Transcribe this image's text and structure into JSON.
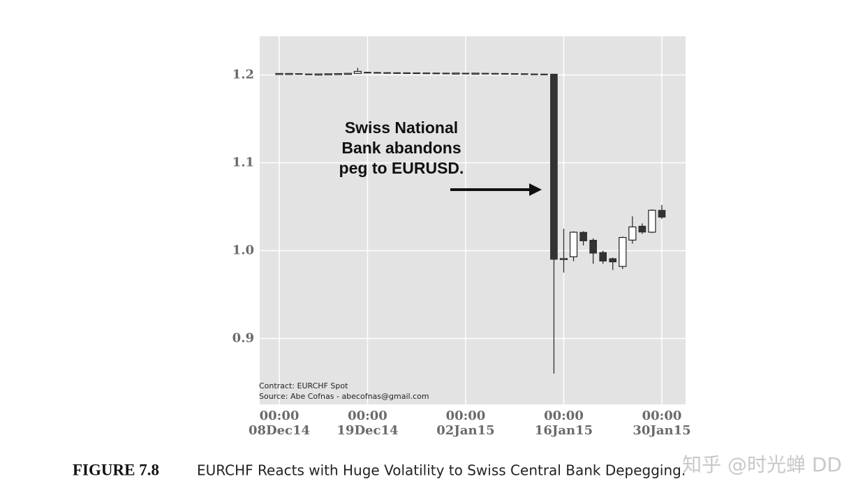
{
  "chart_data": {
    "type": "candlestick",
    "x": [
      "2014-12-08",
      "2014-12-09",
      "2014-12-10",
      "2014-12-11",
      "2014-12-12",
      "2014-12-15",
      "2014-12-16",
      "2014-12-17",
      "2014-12-18",
      "2014-12-19",
      "2014-12-22",
      "2014-12-23",
      "2014-12-24",
      "2014-12-25",
      "2014-12-26",
      "2014-12-29",
      "2014-12-30",
      "2014-12-31",
      "2015-01-01",
      "2015-01-02",
      "2015-01-05",
      "2015-01-06",
      "2015-01-07",
      "2015-01-08",
      "2015-01-09",
      "2015-01-12",
      "2015-01-13",
      "2015-01-14",
      "2015-01-15",
      "2015-01-16",
      "2015-01-19",
      "2015-01-20",
      "2015-01-21",
      "2015-01-22",
      "2015-01-23",
      "2015-01-26",
      "2015-01-27",
      "2015-01-28",
      "2015-01-29",
      "2015-01-30"
    ],
    "open": [
      1.2015,
      1.2016,
      1.2016,
      1.2012,
      1.201,
      1.2011,
      1.2013,
      1.2015,
      1.2018,
      1.2032,
      1.203,
      1.2028,
      1.2027,
      1.2026,
      1.2025,
      1.2024,
      1.2023,
      1.2022,
      1.2021,
      1.2021,
      1.202,
      1.202,
      1.2019,
      1.2018,
      1.2017,
      1.2015,
      1.2012,
      1.2011,
      1.201,
      0.99,
      0.993,
      1.021,
      1.012,
      0.998,
      0.991,
      0.982,
      1.012,
      1.028,
      1.021,
      1.046
    ],
    "high": [
      1.2018,
      1.2018,
      1.2018,
      1.2014,
      1.2013,
      1.2015,
      1.2017,
      1.202,
      1.208,
      1.2034,
      1.2032,
      1.203,
      1.2029,
      1.2028,
      1.2027,
      1.2026,
      1.2025,
      1.2024,
      1.2023,
      1.2023,
      1.2022,
      1.2022,
      1.2021,
      1.202,
      1.2019,
      1.2017,
      1.2014,
      1.2013,
      1.2012,
      1.025,
      1.022,
      1.022,
      1.014,
      1.0,
      0.992,
      1.016,
      1.039,
      1.031,
      1.047,
      1.052
    ],
    "low": [
      1.2013,
      1.2014,
      1.2011,
      1.2009,
      1.2008,
      1.2009,
      1.2011,
      1.2013,
      1.2014,
      1.2028,
      1.2026,
      1.2025,
      1.2024,
      1.2023,
      1.2022,
      1.2021,
      1.202,
      1.2019,
      1.2019,
      1.2018,
      1.2018,
      1.2017,
      1.2016,
      1.2015,
      1.2013,
      1.201,
      1.2009,
      1.2008,
      0.86,
      0.975,
      0.988,
      1.006,
      0.985,
      0.985,
      0.978,
      0.979,
      1.008,
      1.019,
      1.02,
      1.036
    ],
    "close": [
      1.2016,
      1.2016,
      1.2013,
      1.2011,
      1.2011,
      1.2013,
      1.2015,
      1.2018,
      1.204,
      1.203,
      1.2028,
      1.2027,
      1.2026,
      1.2025,
      1.2024,
      1.2023,
      1.2022,
      1.2021,
      1.2021,
      1.202,
      1.202,
      1.2019,
      1.2018,
      1.2017,
      1.2015,
      1.2012,
      1.2011,
      1.201,
      0.99,
      0.991,
      1.021,
      1.011,
      0.997,
      0.988,
      0.987,
      1.015,
      1.027,
      1.021,
      1.046,
      1.038
    ],
    "up_color": "#ffffff",
    "down_color": "#333333",
    "ylim": [
      0.825,
      1.244
    ],
    "yticks": [
      0.9,
      {
        "value": 1,
        "label": "1.0"
      },
      1.1,
      1.2
    ],
    "xticks": [
      {
        "value": "2014-12-08",
        "label": [
          "00:00",
          "08Dec14"
        ]
      },
      {
        "value": "2014-12-19",
        "label": [
          "00:00",
          "19Dec14"
        ]
      },
      {
        "value": "2015-01-02",
        "label": [
          "00:00",
          "02Jan15"
        ]
      },
      {
        "value": "2015-01-16",
        "label": [
          "00:00",
          "16Jan15"
        ]
      },
      {
        "value": "2015-01-30",
        "label": [
          "00:00",
          "30Jan15"
        ]
      }
    ],
    "grid": true,
    "annotation": [
      "Swiss National",
      "Bank abandons",
      "peg to EURUSD."
    ],
    "notes": [
      "Contract: EURCHF Spot",
      "Source: Abe Cofnas - abecofnas@gmail.com"
    ]
  },
  "caption": {
    "label": "FIGURE 7.8",
    "text": "EURCHF Reacts with Huge Volatility to Swiss Central Bank Depegging."
  },
  "watermark": "知乎 @时光蝉 DD"
}
